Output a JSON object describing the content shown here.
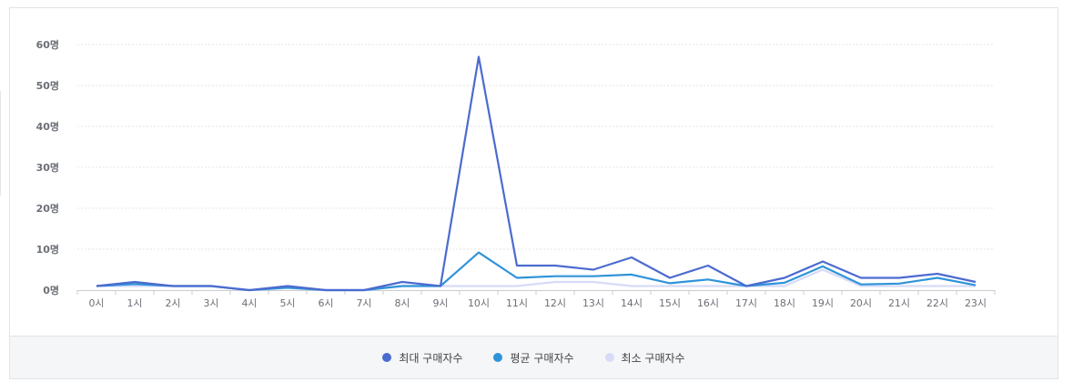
{
  "chart_data": {
    "type": "line",
    "categories": [
      "0시",
      "1시",
      "2시",
      "3시",
      "4시",
      "5시",
      "6시",
      "7시",
      "8시",
      "9시",
      "10시",
      "11시",
      "12시",
      "13시",
      "14시",
      "15시",
      "16시",
      "17시",
      "18시",
      "19시",
      "20시",
      "21시",
      "22시",
      "23시"
    ],
    "ylim": [
      0,
      60
    ],
    "yticks": [
      "0명",
      "10명",
      "20명",
      "30명",
      "40명",
      "50명",
      "60명"
    ],
    "grid": true,
    "legend_position": "bottom",
    "series": [
      {
        "name": "최대 구매자수",
        "color": "#4c6bd0",
        "values": [
          1,
          2,
          1,
          1,
          0,
          1,
          0,
          0,
          2,
          1,
          57,
          6,
          6,
          5,
          8,
          3,
          6,
          1,
          3,
          7,
          3,
          3,
          4,
          2
        ]
      },
      {
        "name": "평균 구매자수",
        "color": "#2f93d9",
        "values": [
          1,
          1.5,
          1,
          1,
          0,
          0.6,
          0,
          0,
          1,
          1,
          9.2,
          3,
          3.4,
          3.4,
          3.8,
          1.7,
          2.6,
          1,
          1.8,
          5.8,
          1.4,
          1.6,
          3,
          1.2
        ]
      },
      {
        "name": "최소 구매자수",
        "color": "#d8dbf7",
        "values": [
          1,
          1,
          1,
          1,
          0,
          0.5,
          0,
          0,
          1,
          1,
          1,
          1,
          2,
          2,
          1,
          1,
          1,
          1,
          1,
          5,
          1,
          1,
          1,
          1
        ]
      }
    ]
  },
  "legend": {
    "items": [
      {
        "label": "최대 구매자수",
        "color": "#4c6bd0"
      },
      {
        "label": "평균 구매자수",
        "color": "#2f93d9"
      },
      {
        "label": "최소 구매자수",
        "color": "#d8dbf7"
      }
    ]
  }
}
